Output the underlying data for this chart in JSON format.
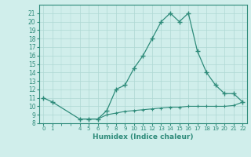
{
  "xlabel": "Humidex (Indice chaleur)",
  "x_upper": [
    0,
    1,
    4,
    5,
    6,
    7,
    8,
    9,
    10,
    11,
    12,
    13,
    14,
    15,
    16,
    17,
    18,
    19,
    20,
    21,
    22
  ],
  "y_upper": [
    11,
    10.5,
    8.5,
    8.5,
    8.5,
    9.5,
    12,
    12.5,
    14.5,
    16,
    18,
    20,
    21,
    20,
    21,
    16.5,
    14,
    12.5,
    11.5,
    11.5,
    10.5
  ],
  "x_lower": [
    4,
    5,
    6,
    7,
    8,
    9,
    10,
    11,
    12,
    13,
    14,
    15,
    16,
    17,
    18,
    19,
    20,
    21,
    22
  ],
  "y_lower": [
    8.5,
    8.5,
    8.5,
    9.0,
    9.2,
    9.4,
    9.5,
    9.6,
    9.7,
    9.8,
    9.9,
    9.9,
    10.0,
    10.0,
    10.0,
    10.0,
    10.0,
    10.1,
    10.5
  ],
  "line_color": "#2e8b7a",
  "bg_color": "#d0eeeb",
  "grid_color": "#aed8d3",
  "tick_color": "#2e8b7a",
  "label_color": "#2e8b7a",
  "ylim": [
    8,
    22
  ],
  "xlim": [
    -0.5,
    22.5
  ],
  "yticks": [
    8,
    9,
    10,
    11,
    12,
    13,
    14,
    15,
    16,
    17,
    18,
    19,
    20,
    21
  ],
  "xticks": [
    0,
    1,
    4,
    5,
    6,
    7,
    8,
    9,
    10,
    11,
    12,
    13,
    14,
    15,
    16,
    17,
    18,
    19,
    20,
    21,
    22
  ]
}
